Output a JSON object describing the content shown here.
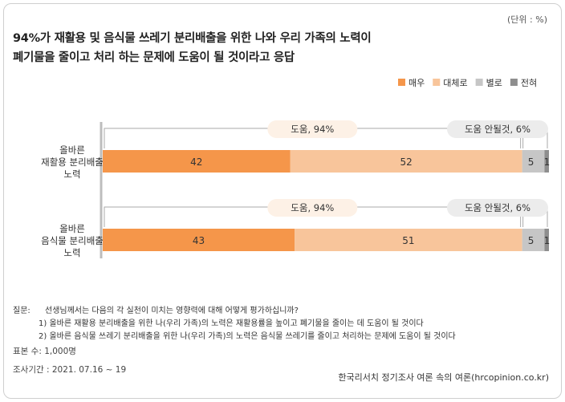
{
  "unit": "(단위 : %)",
  "title_lines": [
    "94%가 재활용 및 음식물 쓰레기 분리배출을 위한 나와 우리 가족의 노력이",
    "폐기물을 줄이고 처리 하는 문제에 도움이 될 것이라고 응답"
  ],
  "chart_data": {
    "type": "bar",
    "orientation": "horizontal",
    "stacked": true,
    "categories": [
      [
        "올바른",
        "재활용 분리배출",
        "노력"
      ],
      [
        "올바른",
        "음식물 분리배출",
        "노력"
      ]
    ],
    "series": [
      {
        "name": "매우",
        "color": "#f5964a",
        "values": [
          42,
          43
        ]
      },
      {
        "name": "대체로",
        "color": "#f8c59b",
        "values": [
          52,
          51
        ]
      },
      {
        "name": "별로",
        "color": "#c6c6c6",
        "values": [
          5,
          5
        ]
      },
      {
        "name": "전혀",
        "color": "#8e8e8e",
        "values": [
          1,
          1
        ]
      }
    ],
    "legend_position": "top-right",
    "groups": [
      {
        "label": "도움, 94%",
        "series": [
          0,
          1
        ]
      },
      {
        "label": "도움 안될것, 6%",
        "series": [
          2,
          3
        ]
      }
    ],
    "xlim": [
      0,
      100
    ]
  },
  "notes": {
    "question_label": "질문:",
    "question": "선생님께서는 다음의 각 실천이 미치는 영향력에 대해 어떻게 평가하십니까?",
    "item1": "1) 올바른 재활용 분리배출을 위한 나(우리 가족)의 노력은 재활용률을 높이고 폐기물을 줄이는 데 도움이 될 것이다",
    "item2": "2) 올바른 음식물 쓰레기 분리배출을 위한 나(우리 가족)의 노력은  음식물 쓰레기를 줄이고 처리하는 문제에 도움이 될 것이다"
  },
  "sample": "표본 수: 1,000명",
  "period": "조사기간 : 2021. 07.16 ~ 19",
  "source": "한국리서치 정기조사 여론 속의 여론(hrcopinion.co.kr)"
}
